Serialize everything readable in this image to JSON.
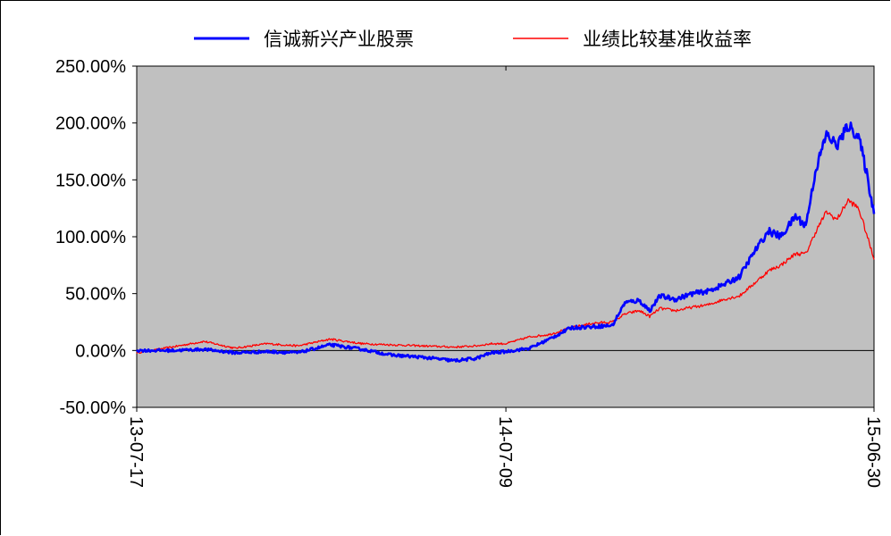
{
  "chart_data": {
    "type": "line",
    "title": "",
    "xlabel": "",
    "ylabel": "",
    "x_ticks": [
      "13-07-17",
      "14-07-09",
      "15-06-30"
    ],
    "y_ticks": [
      "250.00%",
      "200.00%",
      "150.00%",
      "100.00%",
      "50.00%",
      "0.00%",
      "-50.00%"
    ],
    "ylim": [
      -50,
      250
    ],
    "xlim": [
      "2013-07-17",
      "2015-06-30"
    ],
    "plot_background": "#c0c0c0",
    "zero_line": true,
    "legend_position": "top",
    "series": [
      {
        "name": "信诚新兴产业股票",
        "color": "#0000ff",
        "x": [
          "2013-07-17",
          "2013-08-20",
          "2013-09-20",
          "2013-10-20",
          "2013-11-20",
          "2013-12-20",
          "2014-01-20",
          "2014-02-20",
          "2014-03-20",
          "2014-04-20",
          "2014-05-20",
          "2014-06-10",
          "2014-06-25",
          "2014-07-09",
          "2014-08-01",
          "2014-08-20",
          "2014-09-10",
          "2014-10-01",
          "2014-10-20",
          "2014-11-01",
          "2014-11-15",
          "2014-11-25",
          "2014-12-05",
          "2014-12-20",
          "2015-01-05",
          "2015-01-20",
          "2015-02-05",
          "2015-02-20",
          "2015-03-05",
          "2015-03-20",
          "2015-04-01",
          "2015-04-15",
          "2015-04-25",
          "2015-05-05",
          "2015-05-15",
          "2015-05-25",
          "2015-06-05",
          "2015-06-15",
          "2015-06-22",
          "2015-06-30"
        ],
        "values": [
          0,
          0,
          1,
          -2,
          -1,
          -2,
          5,
          1,
          -4,
          -6,
          -9,
          -7,
          -2,
          -1,
          2,
          10,
          20,
          21,
          22,
          42,
          44,
          35,
          48,
          45,
          50,
          52,
          58,
          65,
          85,
          105,
          100,
          118,
          110,
          160,
          190,
          180,
          198,
          188,
          160,
          120
        ]
      },
      {
        "name": "业绩比较基准收益率",
        "color": "#ff0000",
        "x": [
          "2013-07-17",
          "2013-08-20",
          "2013-09-20",
          "2013-10-20",
          "2013-11-20",
          "2013-12-20",
          "2014-01-20",
          "2014-02-20",
          "2014-03-20",
          "2014-04-20",
          "2014-05-20",
          "2014-06-10",
          "2014-06-25",
          "2014-07-09",
          "2014-08-01",
          "2014-08-20",
          "2014-09-10",
          "2014-10-01",
          "2014-10-20",
          "2014-11-01",
          "2014-11-15",
          "2014-11-25",
          "2014-12-05",
          "2014-12-20",
          "2015-01-05",
          "2015-01-20",
          "2015-02-05",
          "2015-02-20",
          "2015-03-05",
          "2015-03-20",
          "2015-04-01",
          "2015-04-15",
          "2015-04-25",
          "2015-05-05",
          "2015-05-15",
          "2015-05-25",
          "2015-06-05",
          "2015-06-15",
          "2015-06-22",
          "2015-06-30"
        ],
        "values": [
          -2,
          3,
          8,
          2,
          6,
          4,
          10,
          6,
          5,
          4,
          3,
          4,
          6,
          6,
          12,
          14,
          20,
          24,
          25,
          32,
          35,
          30,
          37,
          35,
          38,
          40,
          45,
          48,
          58,
          70,
          75,
          85,
          85,
          105,
          122,
          115,
          132,
          125,
          105,
          80
        ]
      }
    ]
  }
}
